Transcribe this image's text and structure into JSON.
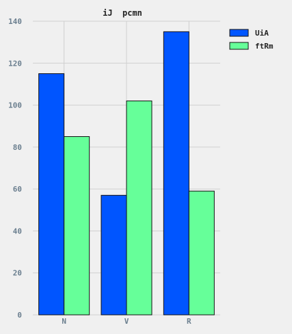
{
  "chart_data": {
    "type": "bar",
    "title": "iJ  pcmn",
    "xlabel": "",
    "ylabel": "",
    "categories": [
      "N",
      "V",
      "R"
    ],
    "series": [
      {
        "name": "UiA",
        "values": [
          115,
          57,
          135
        ],
        "color": "#0055ff"
      },
      {
        "name": "ftRm",
        "values": [
          85,
          102,
          59
        ],
        "color": "#66ff99"
      }
    ],
    "ylim": [
      0,
      140
    ],
    "yticks": [
      0,
      20,
      40,
      60,
      80,
      100,
      120,
      140
    ],
    "grid": true,
    "legend_position": "top-right",
    "background": "#f0f0f0"
  }
}
